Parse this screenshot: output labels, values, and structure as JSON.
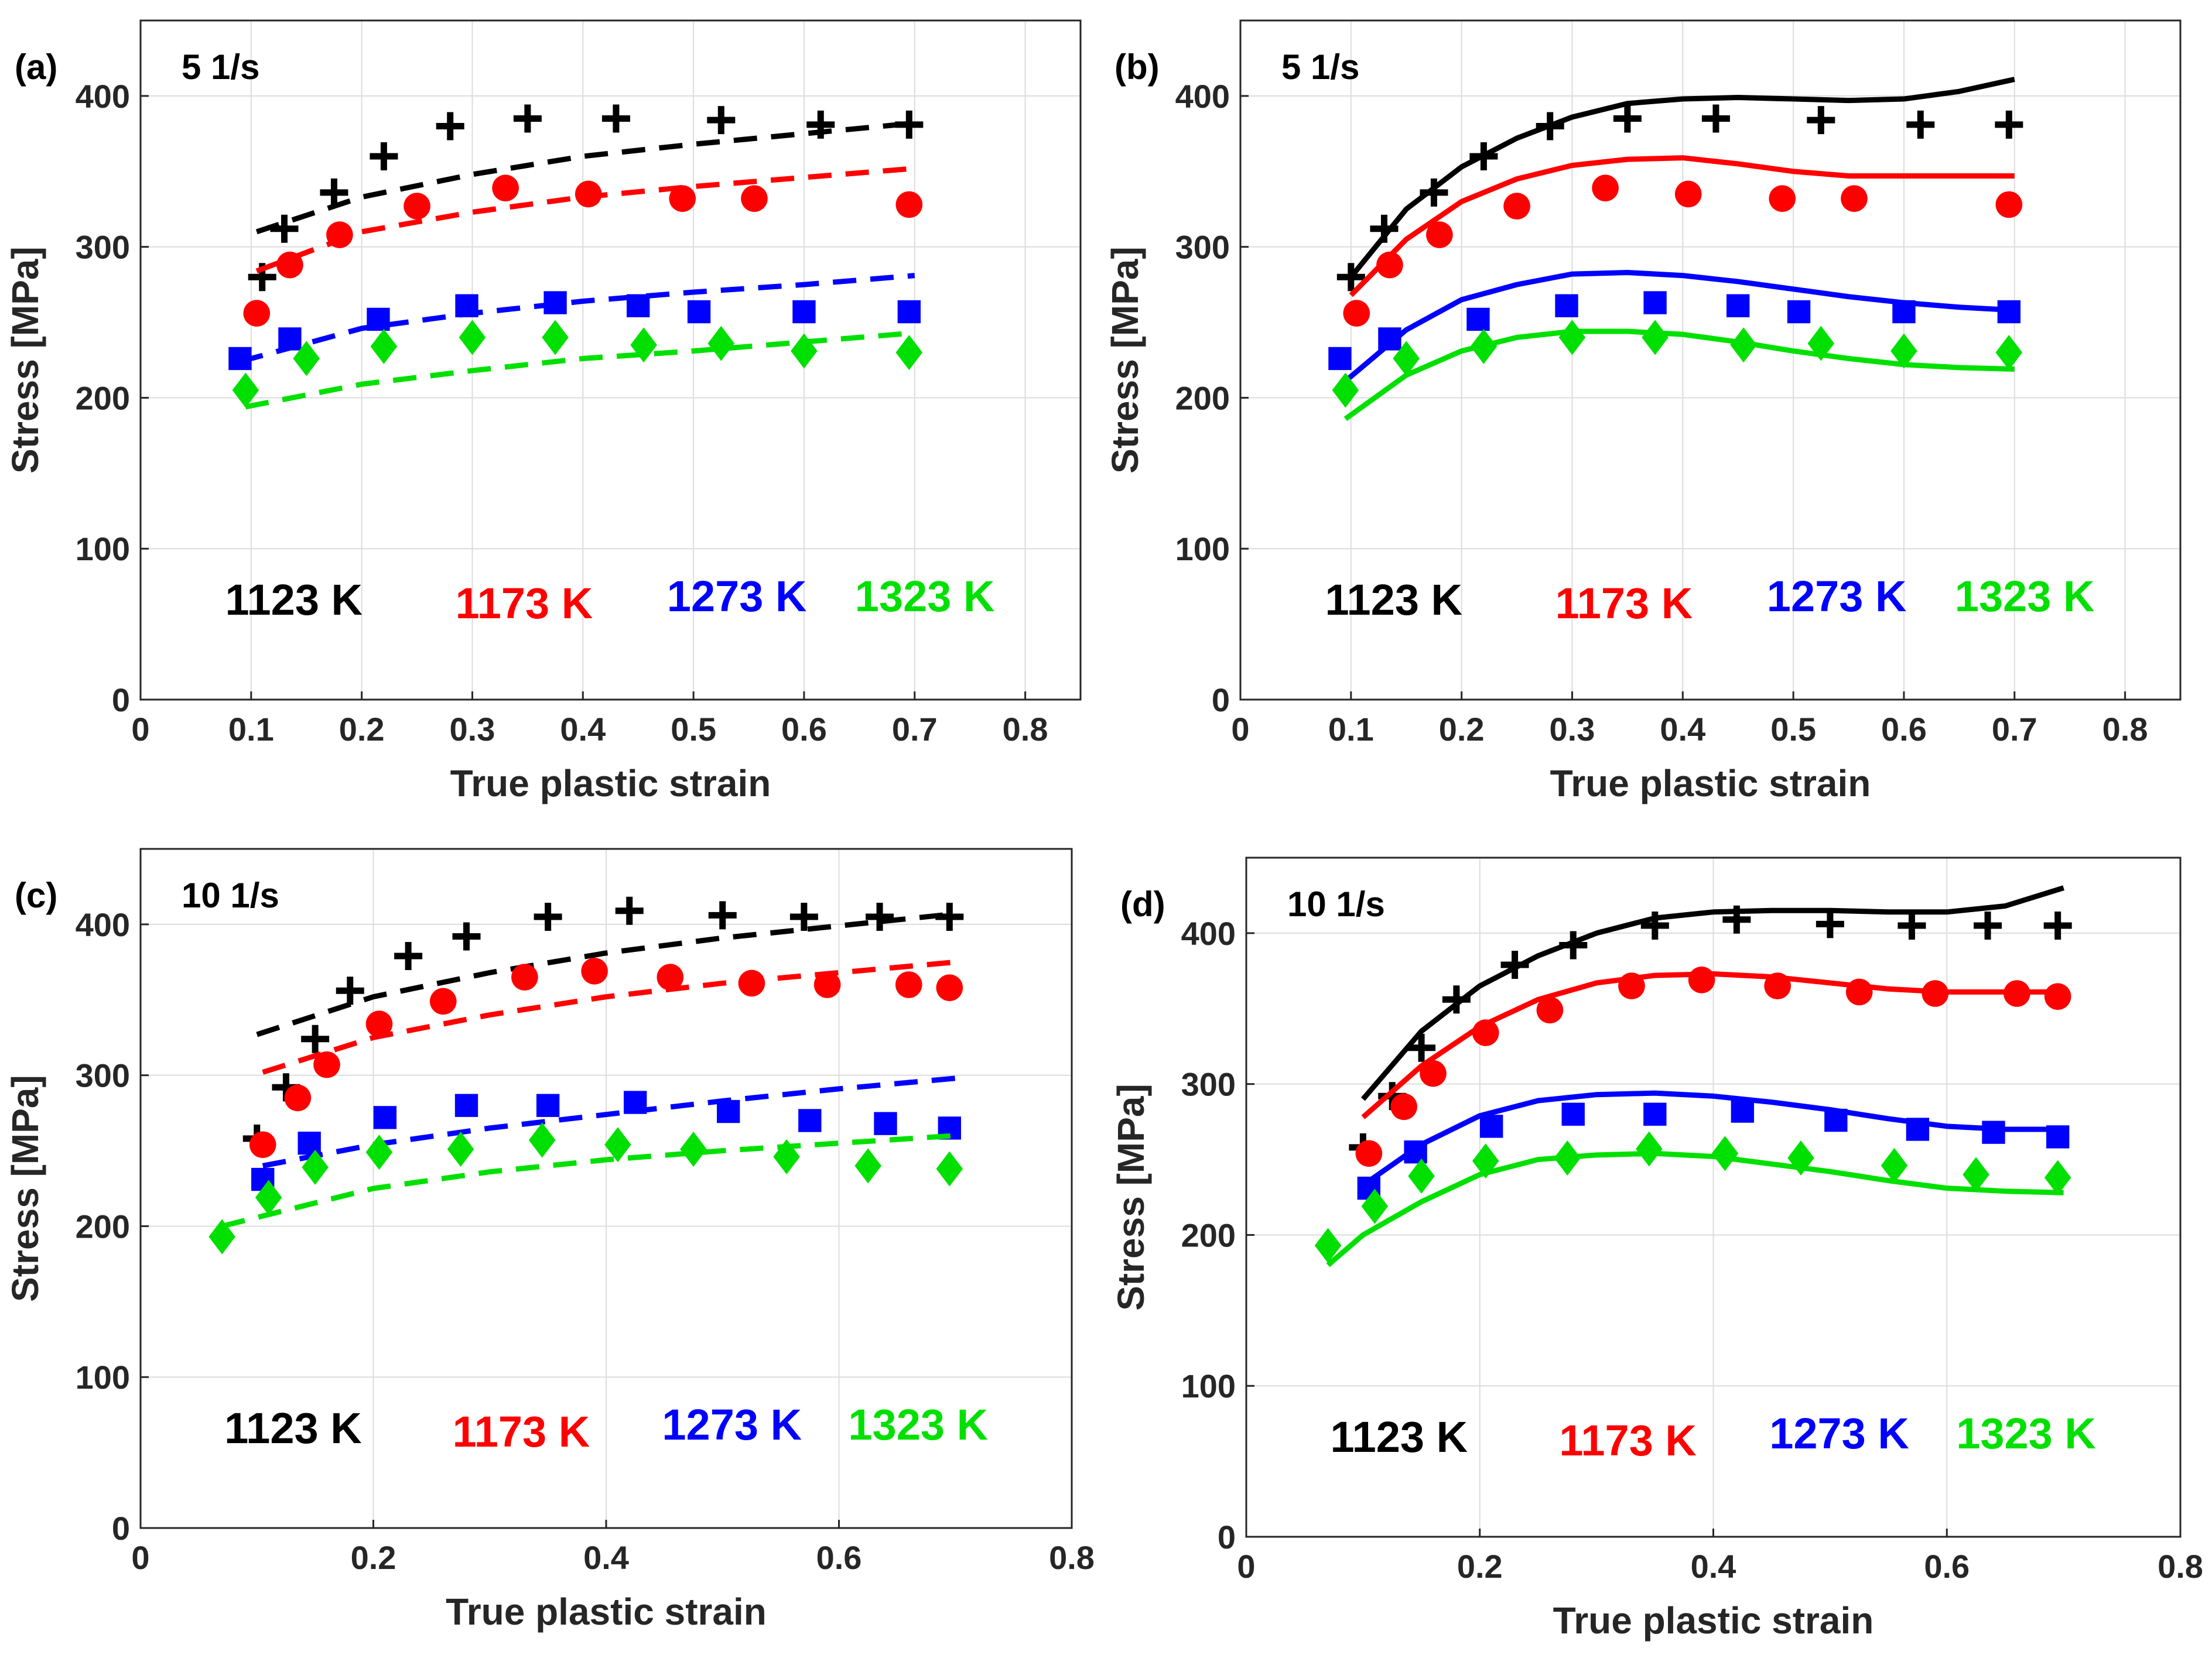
{
  "chart_data": [
    {
      "id": "a",
      "panel_label": "(a)",
      "rate_label": "5 1/s",
      "type": "scatter",
      "model_style": "dashed",
      "xlabel": "True plastic strain",
      "ylabel": "Stress [MPa]",
      "xlim": [
        0,
        0.85
      ],
      "ylim": [
        0,
        450
      ],
      "xticks": [
        "0",
        "0.1",
        "0.2",
        "0.3",
        "0.4",
        "0.5",
        "0.6",
        "0.7",
        "0.8"
      ],
      "yticks": [
        "0",
        "100",
        "200",
        "300",
        "400"
      ],
      "series": [
        {
          "name": "1123 K",
          "color": "#000000",
          "marker": "plus",
          "exp_x": [
            0.11,
            0.13,
            0.175,
            0.22,
            0.28,
            0.35,
            0.43,
            0.525,
            0.615,
            0.695
          ],
          "exp_y": [
            280,
            312,
            336,
            360,
            380,
            385,
            385,
            384,
            381,
            381
          ],
          "model_x": [
            0.105,
            0.2,
            0.3,
            0.4,
            0.5,
            0.6,
            0.7
          ],
          "model_y": [
            310,
            333,
            348,
            360,
            368,
            375,
            382
          ]
        },
        {
          "name": "1173 K",
          "color": "#ff0000",
          "marker": "circle",
          "exp_x": [
            0.105,
            0.135,
            0.18,
            0.25,
            0.33,
            0.405,
            0.49,
            0.555,
            0.695
          ],
          "exp_y": [
            256,
            288,
            308,
            327,
            339,
            335,
            332,
            332,
            328
          ],
          "model_x": [
            0.105,
            0.2,
            0.3,
            0.4,
            0.5,
            0.6,
            0.7
          ],
          "model_y": [
            284,
            310,
            323,
            333,
            340,
            346,
            352
          ]
        },
        {
          "name": "1273 K",
          "color": "#0000ff",
          "marker": "square",
          "exp_x": [
            0.09,
            0.135,
            0.215,
            0.295,
            0.375,
            0.45,
            0.505,
            0.6,
            0.695
          ],
          "exp_y": [
            226,
            239,
            252,
            261,
            263,
            261,
            257,
            257,
            257
          ],
          "model_x": [
            0.09,
            0.2,
            0.3,
            0.4,
            0.5,
            0.6,
            0.7
          ],
          "model_y": [
            224,
            246,
            256,
            264,
            270,
            275,
            281
          ]
        },
        {
          "name": "1323 K",
          "color": "#00e000",
          "marker": "diamond",
          "exp_x": [
            0.095,
            0.15,
            0.22,
            0.3,
            0.375,
            0.455,
            0.525,
            0.6,
            0.695
          ],
          "exp_y": [
            205,
            226,
            234,
            240,
            240,
            235,
            236,
            231,
            230
          ],
          "model_x": [
            0.095,
            0.2,
            0.3,
            0.4,
            0.5,
            0.6,
            0.7
          ],
          "model_y": [
            194,
            209,
            218,
            226,
            231,
            237,
            243
          ]
        }
      ]
    },
    {
      "id": "b",
      "panel_label": "(b)",
      "rate_label": "5 1/s",
      "type": "scatter",
      "model_style": "solid",
      "xlabel": "True plastic strain",
      "ylabel": "Stress [MPa]",
      "xlim": [
        0,
        0.85
      ],
      "ylim": [
        0,
        450
      ],
      "xticks": [
        "0",
        "0.1",
        "0.2",
        "0.3",
        "0.4",
        "0.5",
        "0.6",
        "0.7",
        "0.8"
      ],
      "yticks": [
        "0",
        "100",
        "200",
        "300",
        "400"
      ],
      "series": [
        {
          "name": "1123 K",
          "color": "#000000",
          "marker": "plus",
          "exp_x": [
            0.1,
            0.13,
            0.175,
            0.22,
            0.28,
            0.35,
            0.43,
            0.525,
            0.615,
            0.695
          ],
          "exp_y": [
            280,
            312,
            336,
            360,
            380,
            385,
            385,
            384,
            381,
            381
          ],
          "model_x": [
            0.1,
            0.15,
            0.2,
            0.25,
            0.3,
            0.35,
            0.4,
            0.45,
            0.5,
            0.55,
            0.6,
            0.65,
            0.7
          ],
          "model_y": [
            280,
            325,
            353,
            372,
            386,
            395,
            398,
            399,
            398,
            397,
            398,
            403,
            411
          ]
        },
        {
          "name": "1173 K",
          "color": "#ff0000",
          "marker": "circle",
          "exp_x": [
            0.105,
            0.135,
            0.18,
            0.25,
            0.33,
            0.405,
            0.49,
            0.555,
            0.695
          ],
          "exp_y": [
            256,
            288,
            308,
            327,
            339,
            335,
            332,
            332,
            328
          ],
          "model_x": [
            0.1,
            0.15,
            0.2,
            0.25,
            0.3,
            0.35,
            0.4,
            0.45,
            0.5,
            0.55,
            0.6,
            0.65,
            0.7
          ],
          "model_y": [
            268,
            305,
            330,
            345,
            354,
            358,
            359,
            355,
            350,
            347,
            347,
            347,
            347
          ]
        },
        {
          "name": "1273 K",
          "color": "#0000ff",
          "marker": "square",
          "exp_x": [
            0.09,
            0.135,
            0.215,
            0.295,
            0.375,
            0.45,
            0.505,
            0.6,
            0.695
          ],
          "exp_y": [
            226,
            239,
            252,
            261,
            263,
            261,
            257,
            257,
            257
          ],
          "model_x": [
            0.09,
            0.15,
            0.2,
            0.25,
            0.3,
            0.35,
            0.4,
            0.45,
            0.5,
            0.55,
            0.6,
            0.65,
            0.7
          ],
          "model_y": [
            208,
            245,
            265,
            275,
            282,
            283,
            281,
            277,
            272,
            267,
            263,
            260,
            258
          ]
        },
        {
          "name": "1323 K",
          "color": "#00e000",
          "marker": "diamond",
          "exp_x": [
            0.095,
            0.15,
            0.22,
            0.3,
            0.375,
            0.455,
            0.525,
            0.6,
            0.695
          ],
          "exp_y": [
            205,
            226,
            234,
            240,
            240,
            235,
            236,
            231,
            230
          ],
          "model_x": [
            0.095,
            0.15,
            0.2,
            0.25,
            0.3,
            0.35,
            0.4,
            0.45,
            0.5,
            0.55,
            0.6,
            0.65,
            0.7
          ],
          "model_y": [
            186,
            215,
            231,
            240,
            244,
            244,
            242,
            237,
            231,
            226,
            222,
            220,
            219
          ]
        }
      ]
    },
    {
      "id": "c",
      "panel_label": "(c)",
      "rate_label": "10 1/s",
      "type": "scatter",
      "model_style": "dashed",
      "xlabel": "True plastic strain",
      "ylabel": "Stress [MPa]",
      "xlim": [
        0,
        0.8
      ],
      "ylim": [
        0,
        450
      ],
      "xticks": [
        "0",
        "0.2",
        "0.4",
        "0.6",
        "0.8"
      ],
      "yticks": [
        "0",
        "100",
        "200",
        "300",
        "400"
      ],
      "series": [
        {
          "name": "1123 K",
          "color": "#000000",
          "marker": "plus",
          "exp_x": [
            0.1,
            0.125,
            0.15,
            0.18,
            0.23,
            0.28,
            0.35,
            0.42,
            0.5,
            0.57,
            0.635,
            0.695
          ],
          "exp_y": [
            258,
            292,
            324,
            356,
            379,
            392,
            405,
            409,
            406,
            405,
            405,
            405
          ],
          "model_x": [
            0.1,
            0.2,
            0.3,
            0.4,
            0.5,
            0.6,
            0.7
          ],
          "model_y": [
            327,
            352,
            368,
            381,
            391,
            399,
            407
          ]
        },
        {
          "name": "1173 K",
          "color": "#ff0000",
          "marker": "circle",
          "exp_x": [
            0.105,
            0.135,
            0.16,
            0.205,
            0.26,
            0.33,
            0.39,
            0.455,
            0.525,
            0.59,
            0.66,
            0.695
          ],
          "exp_y": [
            254,
            285,
            307,
            334,
            349,
            365,
            369,
            365,
            361,
            360,
            360,
            358
          ],
          "model_x": [
            0.105,
            0.2,
            0.3,
            0.4,
            0.5,
            0.6,
            0.7
          ],
          "model_y": [
            302,
            325,
            340,
            352,
            361,
            368,
            375
          ]
        },
        {
          "name": "1273 K",
          "color": "#0000ff",
          "marker": "square",
          "exp_x": [
            0.105,
            0.145,
            0.21,
            0.28,
            0.35,
            0.425,
            0.505,
            0.575,
            0.64,
            0.695
          ],
          "exp_y": [
            231,
            255,
            272,
            280,
            280,
            282,
            276,
            270,
            268,
            265
          ],
          "model_x": [
            0.105,
            0.2,
            0.3,
            0.4,
            0.5,
            0.6,
            0.7
          ],
          "model_y": [
            240,
            254,
            265,
            274,
            283,
            291,
            298
          ]
        },
        {
          "name": "1323 K",
          "color": "#00e000",
          "marker": "diamond",
          "exp_x": [
            0.07,
            0.11,
            0.15,
            0.205,
            0.275,
            0.345,
            0.41,
            0.475,
            0.555,
            0.625,
            0.695
          ],
          "exp_y": [
            193,
            219,
            239,
            249,
            251,
            257,
            254,
            251,
            246,
            240,
            238
          ],
          "model_x": [
            0.07,
            0.2,
            0.3,
            0.4,
            0.5,
            0.6,
            0.7
          ],
          "model_y": [
            200,
            225,
            236,
            244,
            250,
            255,
            260
          ]
        }
      ]
    },
    {
      "id": "d",
      "panel_label": "(d)",
      "rate_label": "10 1/s",
      "type": "scatter",
      "model_style": "solid",
      "xlabel": "True plastic strain",
      "ylabel": "Stress [MPa]",
      "xlim": [
        0,
        0.8
      ],
      "ylim": [
        0,
        450
      ],
      "xticks": [
        "0",
        "0.2",
        "0.4",
        "0.6",
        "0.8"
      ],
      "yticks": [
        "0",
        "100",
        "200",
        "300",
        "400"
      ],
      "series": [
        {
          "name": "1123 K",
          "color": "#000000",
          "marker": "plus",
          "exp_x": [
            0.1,
            0.125,
            0.15,
            0.18,
            0.23,
            0.28,
            0.35,
            0.42,
            0.5,
            0.57,
            0.635,
            0.695
          ],
          "exp_y": [
            258,
            292,
            324,
            356,
            379,
            392,
            405,
            409,
            406,
            405,
            405,
            405
          ],
          "model_x": [
            0.1,
            0.15,
            0.2,
            0.25,
            0.3,
            0.35,
            0.4,
            0.45,
            0.5,
            0.55,
            0.6,
            0.65,
            0.7
          ],
          "model_y": [
            290,
            335,
            365,
            385,
            400,
            410,
            414,
            415,
            415,
            414,
            414,
            418,
            430
          ]
        },
        {
          "name": "1173 K",
          "color": "#ff0000",
          "marker": "circle",
          "exp_x": [
            0.105,
            0.135,
            0.16,
            0.205,
            0.26,
            0.33,
            0.39,
            0.455,
            0.525,
            0.59,
            0.66,
            0.695
          ],
          "exp_y": [
            254,
            285,
            307,
            334,
            349,
            365,
            369,
            365,
            361,
            360,
            360,
            358
          ],
          "model_x": [
            0.1,
            0.15,
            0.2,
            0.25,
            0.3,
            0.35,
            0.4,
            0.45,
            0.5,
            0.55,
            0.6,
            0.65,
            0.7
          ],
          "model_y": [
            278,
            312,
            338,
            356,
            367,
            372,
            373,
            371,
            367,
            363,
            361,
            361,
            361
          ]
        },
        {
          "name": "1273 K",
          "color": "#0000ff",
          "marker": "square",
          "exp_x": [
            0.105,
            0.145,
            0.21,
            0.28,
            0.35,
            0.425,
            0.505,
            0.575,
            0.64,
            0.695
          ],
          "exp_y": [
            231,
            255,
            272,
            280,
            280,
            282,
            276,
            270,
            268,
            265
          ],
          "model_x": [
            0.1,
            0.15,
            0.2,
            0.25,
            0.3,
            0.35,
            0.4,
            0.45,
            0.5,
            0.55,
            0.6,
            0.65,
            0.7
          ],
          "model_y": [
            233,
            260,
            279,
            289,
            293,
            294,
            292,
            288,
            283,
            277,
            272,
            270,
            270
          ]
        },
        {
          "name": "1323 K",
          "color": "#00e000",
          "marker": "diamond",
          "exp_x": [
            0.07,
            0.11,
            0.15,
            0.205,
            0.275,
            0.345,
            0.41,
            0.475,
            0.555,
            0.625,
            0.695
          ],
          "exp_y": [
            193,
            219,
            239,
            249,
            251,
            257,
            254,
            251,
            246,
            240,
            238
          ],
          "model_x": [
            0.07,
            0.1,
            0.15,
            0.2,
            0.25,
            0.3,
            0.35,
            0.4,
            0.45,
            0.5,
            0.55,
            0.6,
            0.65,
            0.7
          ],
          "model_y": [
            180,
            200,
            222,
            240,
            250,
            253,
            254,
            252,
            247,
            242,
            236,
            231,
            229,
            228
          ]
        }
      ]
    }
  ]
}
